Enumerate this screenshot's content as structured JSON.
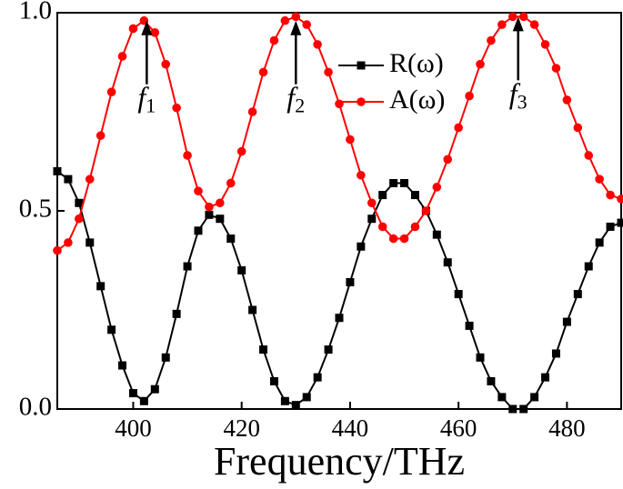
{
  "chart_data": {
    "type": "line",
    "xlabel": "Frequency/THz",
    "x": [
      386,
      388,
      390,
      392,
      394,
      396,
      398,
      400,
      402,
      404,
      406,
      408,
      410,
      412,
      414,
      416,
      418,
      420,
      422,
      424,
      426,
      428,
      430,
      432,
      434,
      436,
      438,
      440,
      442,
      444,
      446,
      448,
      450,
      452,
      454,
      456,
      458,
      460,
      462,
      464,
      466,
      468,
      470,
      472,
      474,
      476,
      478,
      480,
      482,
      484,
      486,
      488,
      490
    ],
    "series": [
      {
        "name": "R(ω)",
        "color": "#000000",
        "marker": "square",
        "values": [
          0.6,
          0.58,
          0.52,
          0.42,
          0.31,
          0.2,
          0.11,
          0.04,
          0.02,
          0.05,
          0.13,
          0.24,
          0.36,
          0.45,
          0.49,
          0.48,
          0.43,
          0.35,
          0.25,
          0.15,
          0.07,
          0.02,
          0.01,
          0.03,
          0.08,
          0.15,
          0.23,
          0.32,
          0.41,
          0.48,
          0.54,
          0.57,
          0.57,
          0.54,
          0.5,
          0.44,
          0.37,
          0.29,
          0.21,
          0.13,
          0.07,
          0.03,
          0.0,
          0.0,
          0.03,
          0.08,
          0.14,
          0.22,
          0.29,
          0.36,
          0.42,
          0.46,
          0.47
        ]
      },
      {
        "name": "A(ω)",
        "color": "#ff0000",
        "marker": "circle",
        "values": [
          0.4,
          0.42,
          0.48,
          0.58,
          0.69,
          0.8,
          0.89,
          0.96,
          0.98,
          0.95,
          0.87,
          0.76,
          0.64,
          0.55,
          0.51,
          0.52,
          0.57,
          0.65,
          0.75,
          0.85,
          0.93,
          0.98,
          0.99,
          0.97,
          0.92,
          0.85,
          0.77,
          0.68,
          0.59,
          0.52,
          0.46,
          0.43,
          0.43,
          0.46,
          0.5,
          0.56,
          0.63,
          0.71,
          0.79,
          0.87,
          0.93,
          0.97,
          0.99,
          0.99,
          0.97,
          0.92,
          0.86,
          0.78,
          0.71,
          0.64,
          0.58,
          0.54,
          0.53
        ]
      }
    ],
    "xlim": [
      386,
      490
    ],
    "xticks": [
      400,
      420,
      440,
      460,
      480
    ],
    "ylim": [
      0,
      1
    ],
    "yticks": [
      {
        "value": 0,
        "label": "0.0"
      },
      {
        "value": 0.5,
        "label": "0.5"
      },
      {
        "value": 1,
        "label": "1.0"
      }
    ],
    "annotations": [
      {
        "text": "f",
        "subscript": "1",
        "x": 402.5,
        "y": 0.98
      },
      {
        "text": "f",
        "subscript": "2",
        "x": 430,
        "y": 0.98
      },
      {
        "text": "f",
        "subscript": "3",
        "x": 471,
        "y": 0.99
      }
    ],
    "legend": "top"
  }
}
